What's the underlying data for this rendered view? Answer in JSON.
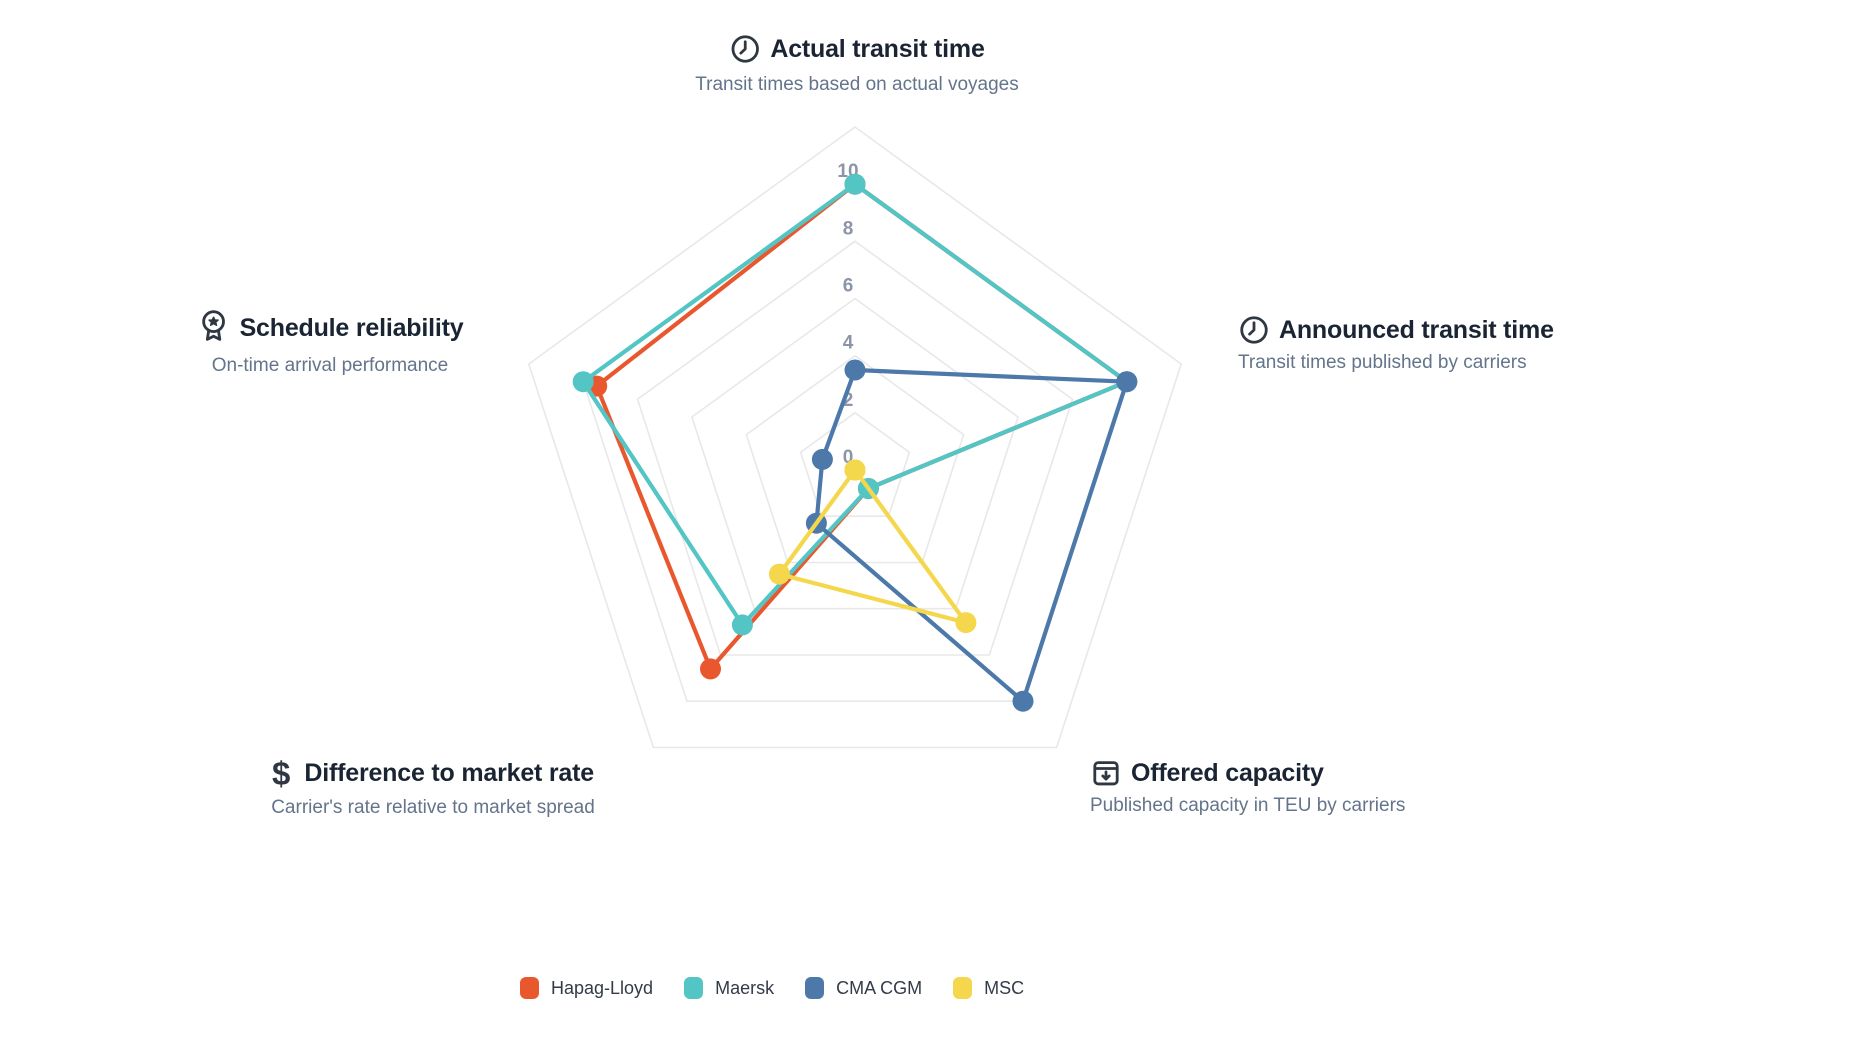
{
  "chart_data": {
    "type": "radar",
    "title": "",
    "axis_max": 12,
    "grid_interval": 2,
    "tick_values": [
      0,
      2,
      4,
      6,
      8,
      10
    ],
    "grid": "on",
    "axes": [
      {
        "id": "actual_transit_time",
        "label": "Actual transit time",
        "description": "Transit times based on actual voyages",
        "icon": "clock-icon",
        "angle_deg": 90
      },
      {
        "id": "announced_transit_time",
        "label": "Announced transit time",
        "description": "Transit times published by carriers",
        "icon": "clock-icon",
        "angle_deg": 18
      },
      {
        "id": "offered_capacity",
        "label": "Offered capacity",
        "description": "Published capacity in TEU by carriers",
        "icon": "archive-arrow-down-icon",
        "angle_deg": -54
      },
      {
        "id": "difference_to_market_rate",
        "label": "Difference to market rate",
        "description": "Carrier's rate relative to market spread",
        "icon": "dollar-icon",
        "angle_deg": -126
      },
      {
        "id": "schedule_reliability",
        "label": "Schedule reliability",
        "description": "On-time arrival performance",
        "icon": "medal-icon",
        "angle_deg": 162
      }
    ],
    "series": [
      {
        "name": "Hapag-Lloyd",
        "color": "#E9572E",
        "values": [
          10,
          10,
          0.8,
          8.6,
          9.5
        ]
      },
      {
        "name": "Maersk",
        "color": "#52C5C4",
        "values": [
          10,
          10,
          0.8,
          6.7,
          10
        ]
      },
      {
        "name": "CMA CGM",
        "color": "#4C79A9",
        "values": [
          3.5,
          10,
          10,
          2.3,
          1.2
        ]
      },
      {
        "name": "MSC",
        "color": "#F4D74D",
        "values": [
          0,
          0,
          6.6,
          4.5,
          0
        ]
      }
    ],
    "legend": {
      "position": "bottom",
      "items": [
        "Hapag-Lloyd",
        "Maersk",
        "CMA CGM",
        "MSC"
      ]
    }
  },
  "style": {
    "grid_color": "#e8e8e8",
    "tick_color": "#8c95a8",
    "title_color": "#1a2433",
    "subtitle_color": "#64748b",
    "icon_color": "#2f3743"
  }
}
